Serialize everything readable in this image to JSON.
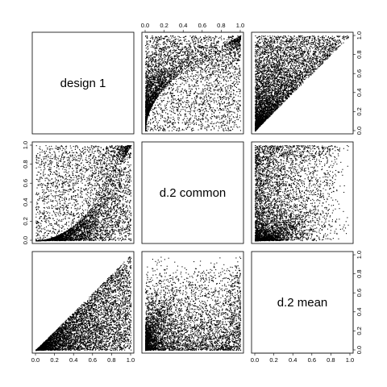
{
  "chart_data": {
    "type": "scatter",
    "variables": [
      "design 1",
      "d.2 common",
      "d.2 mean"
    ],
    "axis_range": [
      0,
      1
    ],
    "tick_labels": [
      "0.0",
      "0.2",
      "0.4",
      "0.6",
      "0.8",
      "1.0"
    ],
    "tick_values": [
      0.0,
      0.2,
      0.4,
      0.6,
      0.8,
      1.0
    ],
    "grid": false,
    "legend": "none",
    "point_color": "#000000",
    "panels_shown": [
      "design 1 vs d.2 common",
      "design 1 vs d.2 mean",
      "d.2 common vs d.2 mean"
    ],
    "note": "Scatterplot matrix; off-diagonal panels show dense point clouds in [0,1]x[0,1]; upper panels are transposes of lower panels."
  }
}
